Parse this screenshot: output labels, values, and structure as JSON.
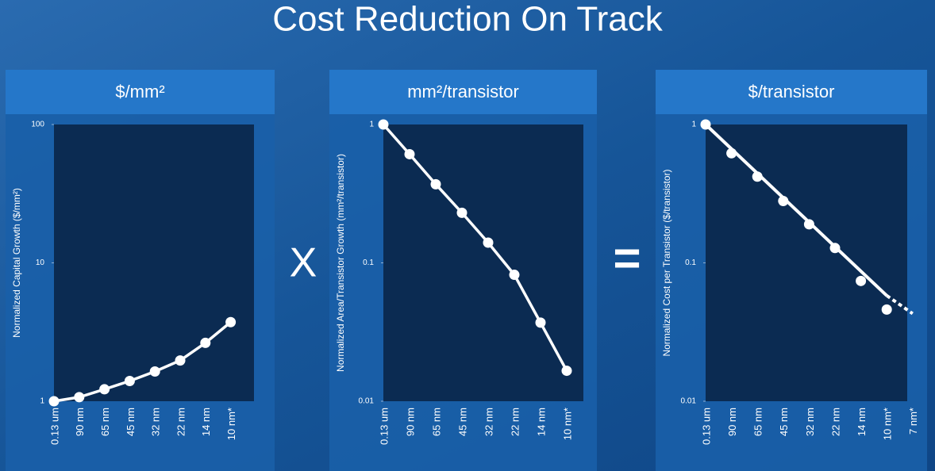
{
  "title": "Cost Reduction On Track",
  "operators": [
    "X",
    "="
  ],
  "chart_data": [
    {
      "type": "line",
      "title": "$/mm²",
      "ylabel": "Normalized Capital Growth ($/mm²)",
      "categories": [
        "0.13 um",
        "90 nm",
        "65 nm",
        "45 nm",
        "32 nm",
        "22 nm",
        "14 nm",
        "10 nm*"
      ],
      "series": [
        {
          "color": "#ffffff",
          "values": [
            1,
            1.07,
            1.22,
            1.4,
            1.64,
            1.97,
            2.64,
            3.73
          ]
        }
      ],
      "ylim": [
        1,
        100
      ],
      "yticks": [
        1,
        10,
        100
      ],
      "ylog": true
    },
    {
      "type": "line",
      "title": "mm²/transistor",
      "ylabel": "Normalized Area/Transistor Growth (mm²/transistor)",
      "categories": [
        "0.13 um",
        "90 nm",
        "65 nm",
        "45 nm",
        "32 nm",
        "22 nm",
        "14 nm",
        "10 nm*"
      ],
      "series": [
        {
          "color": "#ffffff",
          "values": [
            1,
            0.61,
            0.37,
            0.23,
            0.14,
            0.082,
            0.037,
            0.0166
          ]
        }
      ],
      "ylim": [
        0.01,
        1
      ],
      "yticks": [
        0.01,
        0.1,
        1
      ],
      "ylog": true
    },
    {
      "type": "trend",
      "title": "$/transistor",
      "ylabel": "Normalized Cost per Transistor ($/transistor)",
      "categories": [
        "0.13 um",
        "90 nm",
        "65 nm",
        "45 nm",
        "32 nm",
        "22 nm",
        "14 nm",
        "10 nm*",
        "7 nm*"
      ],
      "series": [
        {
          "color": "#ffffff",
          "values": [
            1,
            0.62,
            0.42,
            0.28,
            0.19,
            0.128,
            0.074,
            0.046,
            null
          ]
        }
      ],
      "trend": [
        1,
        null,
        null,
        null,
        null,
        null,
        null,
        0.058,
        0.043
      ],
      "ylim": [
        0.01,
        1
      ],
      "yticks": [
        0.01,
        0.1,
        1
      ],
      "ylog": true
    }
  ]
}
